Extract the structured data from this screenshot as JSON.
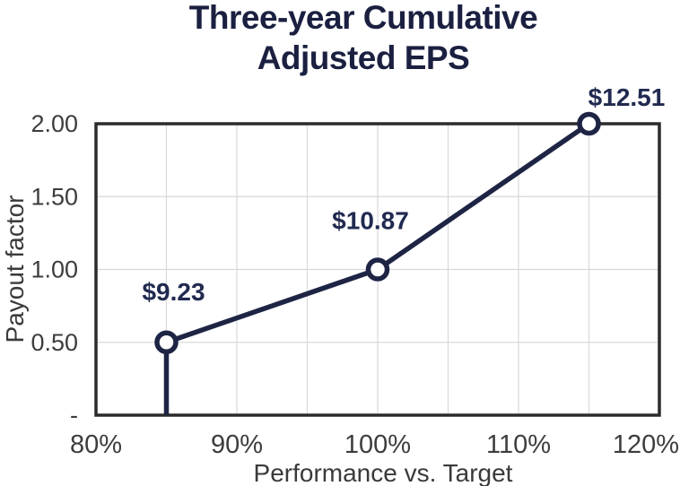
{
  "chart_data": {
    "type": "line",
    "title": "Three-year Cumulative Adjusted EPS",
    "title_lines": [
      "Three-year Cumulative",
      "Adjusted EPS"
    ],
    "xlabel": "Performance vs. Target",
    "ylabel": "Payout factor",
    "xlim": [
      80,
      120
    ],
    "ylim": [
      0,
      2
    ],
    "x_ticks": [
      "80%",
      "90%",
      "100%",
      "110%",
      "120%"
    ],
    "x_tick_values": [
      80,
      90,
      100,
      110,
      120
    ],
    "x_grid_step": 5,
    "y_ticks": [
      "-",
      "0.50",
      "1.00",
      "1.50",
      "2.00"
    ],
    "y_tick_values": [
      0,
      0.5,
      1.0,
      1.5,
      2.0
    ],
    "grid": true,
    "legend": "none",
    "series": [
      {
        "name": "payout-curve",
        "points": [
          {
            "x": 85,
            "y": 0,
            "marker": false,
            "label": ""
          },
          {
            "x": 85,
            "y": 0.5,
            "marker": true,
            "label": "$9.23"
          },
          {
            "x": 100,
            "y": 1.0,
            "marker": true,
            "label": "$10.87"
          },
          {
            "x": 115,
            "y": 2.0,
            "marker": true,
            "label": "$12.51"
          }
        ]
      }
    ],
    "colors": {
      "line": "#1e2444",
      "marker_fill": "#ffffff",
      "frame": "#2b2b2b",
      "grid": "#d9d9d9",
      "tick_text": "#3d3d3d",
      "data_label": "#212a50",
      "title": "#1b2041"
    }
  }
}
